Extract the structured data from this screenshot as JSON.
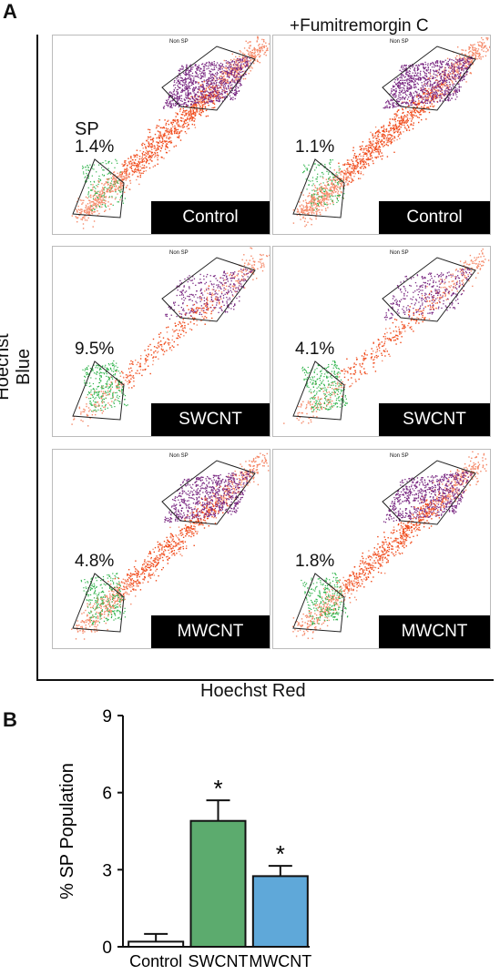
{
  "panel_a": {
    "letter": "A",
    "column_title": "+Fumitremorgin C",
    "y_axis_title": "Hoechst Blue",
    "x_axis_title": "Hoechst Red",
    "gate_label_sp": "SP",
    "gate_label_nonsp": "Non SP",
    "plots": [
      {
        "condition": "Control",
        "percent": "1.4%",
        "show_sp": true
      },
      {
        "condition": "Control",
        "percent": "1.1%",
        "show_sp": false
      },
      {
        "condition": "SWCNT",
        "percent": "9.5%",
        "show_sp": false
      },
      {
        "condition": "SWCNT",
        "percent": "4.1%",
        "show_sp": false
      },
      {
        "condition": "MWCNT",
        "percent": "4.8%",
        "show_sp": false
      },
      {
        "condition": "MWCNT",
        "percent": "1.8%",
        "show_sp": false
      }
    ],
    "colors": {
      "non_sp_population": "#7a2a83",
      "sp_population": "#2db34a",
      "main_population": "#f04a1a"
    }
  },
  "panel_b": {
    "letter": "B",
    "chart_data": {
      "type": "bar",
      "categories": [
        "Control",
        "SWCNT",
        "MWCNT"
      ],
      "values": [
        0.2,
        4.9,
        2.75
      ],
      "errors": [
        0.3,
        0.8,
        0.4
      ],
      "significance": [
        "",
        "*",
        "*"
      ],
      "colors": [
        "#ffffff",
        "#5cab6e",
        "#5fa8d9"
      ],
      "ylabel": "% SP Population",
      "xlabel": "",
      "ylim": [
        0,
        9
      ],
      "yticks": [
        0,
        3,
        6,
        9
      ],
      "grid": false
    }
  }
}
